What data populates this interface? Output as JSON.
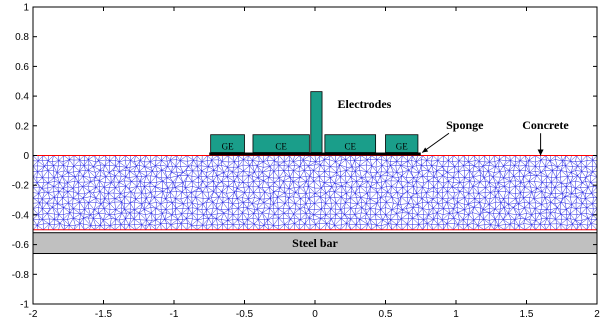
{
  "chart_data": {
    "type": "diagram",
    "xlim": [
      -2,
      2
    ],
    "ylim": [
      -1,
      1
    ],
    "xticks": [
      "-2",
      "-1.5",
      "-1",
      "-0.5",
      "0",
      "0.5",
      "1",
      "1.5",
      "2"
    ],
    "yticks": [
      "1",
      "0.8",
      "0.6",
      "0.4",
      "0.2",
      "0",
      "-0.2",
      "-0.4",
      "-0.6",
      "-0.8",
      "-1"
    ],
    "concrete": {
      "x": [
        -2,
        2
      ],
      "y": [
        -0.5,
        0
      ]
    },
    "steel_bar": {
      "label": "Steel bar",
      "x": [
        -2,
        2
      ],
      "y": [
        -0.66,
        -0.52
      ]
    },
    "sponge": {
      "x": [
        -0.75,
        0.75
      ],
      "y": [
        0,
        0.02
      ]
    },
    "electrodes": [
      {
        "label": "GE",
        "x": [
          -0.74,
          -0.5
        ],
        "y": [
          0.02,
          0.14
        ]
      },
      {
        "label": "CE",
        "x": [
          -0.44,
          -0.04
        ],
        "y": [
          0.02,
          0.14
        ]
      },
      {
        "label": "",
        "x": [
          -0.03,
          0.05
        ],
        "y": [
          0.02,
          0.43
        ]
      },
      {
        "label": "CE",
        "x": [
          0.07,
          0.43
        ],
        "y": [
          0.02,
          0.14
        ]
      },
      {
        "label": "GE",
        "x": [
          0.5,
          0.73
        ],
        "y": [
          0.02,
          0.14
        ]
      }
    ],
    "annotations": [
      {
        "text": "Electrodes",
        "x": 0.16,
        "y": 0.32
      },
      {
        "text": "Sponge",
        "x": 0.93,
        "y": 0.18
      },
      {
        "text": "Concrete",
        "x": 1.47,
        "y": 0.18
      }
    ],
    "colors": {
      "mesh": "#1010e0",
      "concrete_outline": "#ff0000",
      "electrode_fill": "#1a9e8a",
      "steel_fill": "#c0c0c0",
      "sponge": "#000000"
    }
  }
}
